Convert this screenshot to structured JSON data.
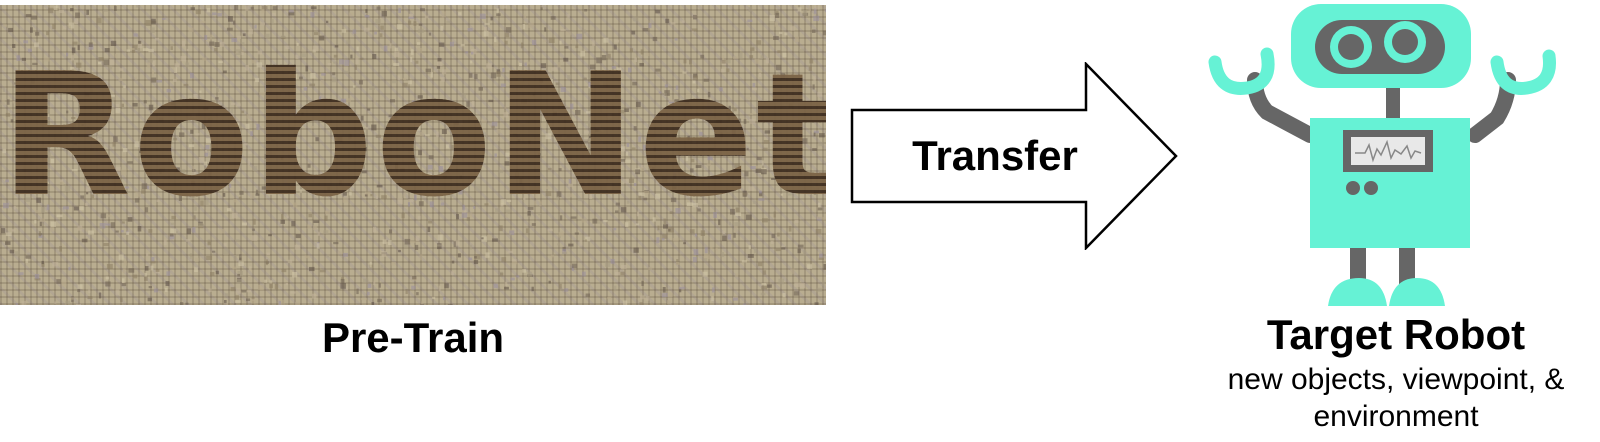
{
  "mosaic": {
    "word": "RoboNet"
  },
  "captions": {
    "pretrain": "Pre-Train",
    "transfer": "Transfer",
    "target_title": "Target Robot",
    "target_subtitle": "new objects, viewpoint, & environment"
  },
  "colors": {
    "robot_body": "#66f2d5",
    "robot_dark": "#666666",
    "mosaic_base": "#b9ad90",
    "mosaic_letters": "#4a3828"
  },
  "icons": {
    "arrow": "right-arrow-icon",
    "robot": "robot-icon"
  }
}
